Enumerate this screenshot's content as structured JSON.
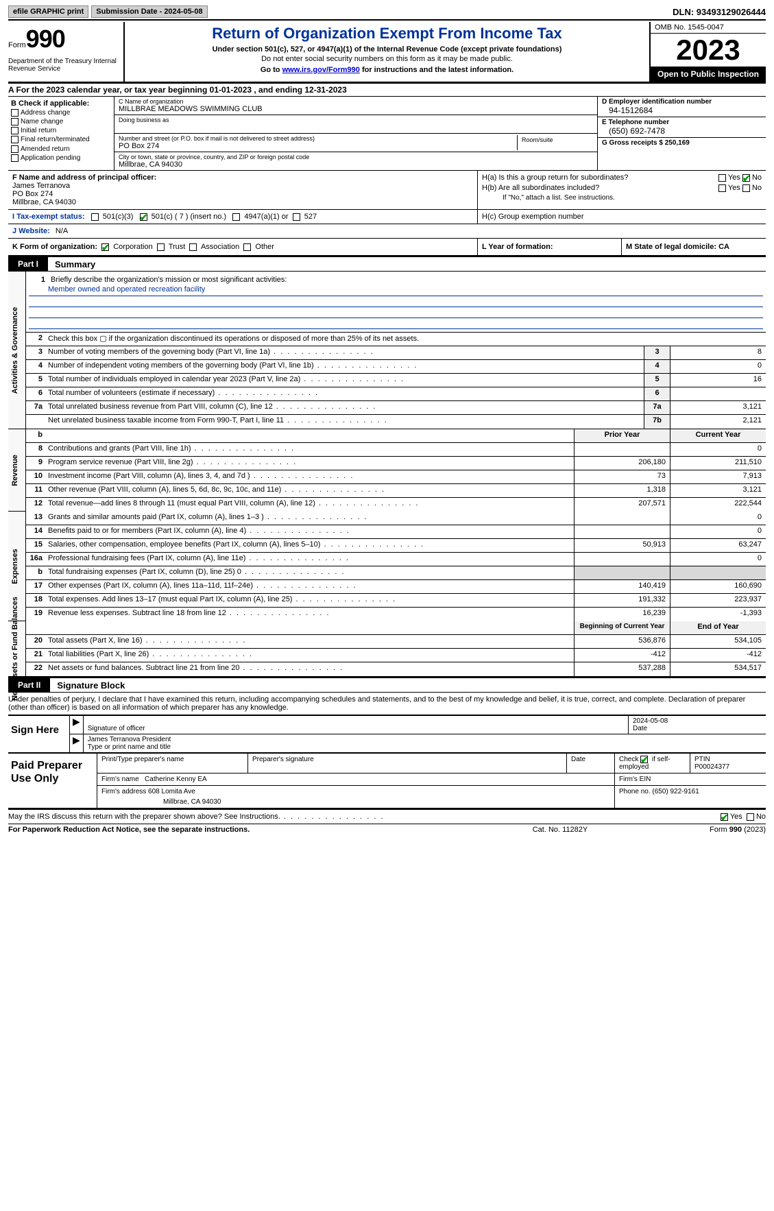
{
  "topbar": {
    "efile": "efile GRAPHIC print",
    "submission_label": "Submission Date - 2024-05-08",
    "dln_label": "DLN: 93493129026444"
  },
  "header": {
    "form_word": "Form",
    "form_number": "990",
    "dept": "Department of the Treasury Internal Revenue Service",
    "title": "Return of Organization Exempt From Income Tax",
    "sub1": "Under section 501(c), 527, or 4947(a)(1) of the Internal Revenue Code (except private foundations)",
    "sub2": "Do not enter social security numbers on this form as it may be made public.",
    "sub3_prefix": "Go to ",
    "sub3_link": "www.irs.gov/Form990",
    "sub3_suffix": " for instructions and the latest information.",
    "omb": "OMB No. 1545-0047",
    "year": "2023",
    "open": "Open to Public Inspection"
  },
  "line_a": "A  For the 2023 calendar year, or tax year beginning 01-01-2023    , and ending 12-31-2023",
  "col_b": {
    "header": "B Check if applicable:",
    "items": [
      "Address change",
      "Name change",
      "Initial return",
      "Final return/terminated",
      "Amended return",
      "Application pending"
    ]
  },
  "col_c": {
    "name_lab": "C Name of organization",
    "name_val": "MILLBRAE MEADOWS SWIMMING CLUB",
    "dba_lab": "Doing business as",
    "addr_lab": "Number and street (or P.O. box if mail is not delivered to street address)",
    "addr_val": "PO Box 274",
    "room_lab": "Room/suite",
    "city_lab": "City or town, state or province, country, and ZIP or foreign postal code",
    "city_val": "Millbrae, CA  94030"
  },
  "col_d": {
    "ein_lab": "D Employer identification number",
    "ein_val": "94-1512684",
    "phone_lab": "E Telephone number",
    "phone_val": "(650) 692-7478",
    "gross_lab": "G Gross receipts $ 250,169"
  },
  "row_f": {
    "lab": "F  Name and address of principal officer:",
    "name": "James Terranova",
    "addr1": "PO Box 274",
    "addr2": "Millbrae, CA  94030"
  },
  "row_h": {
    "ha_lab": "H(a)  Is this a group return for subordinates?",
    "hb_lab": "H(b)  Are all subordinates included?",
    "hb_note": "If \"No,\" attach a list. See instructions.",
    "hc_lab": "H(c)  Group exemption number"
  },
  "row_i": {
    "label": "I  Tax-exempt status:",
    "opt1": "501(c)(3)",
    "opt2": "501(c) ( 7 ) (insert no.)",
    "opt3": "4947(a)(1) or",
    "opt4": "527"
  },
  "row_j": {
    "label": "J  Website:",
    "val": "N/A"
  },
  "row_k": {
    "k_lab": "K Form of organization:",
    "opts": [
      "Corporation",
      "Trust",
      "Association",
      "Other"
    ],
    "l_lab": "L Year of formation:",
    "m_lab": "M State of legal domicile: CA"
  },
  "part1": {
    "tab": "Part I",
    "title": "Summary"
  },
  "mission": {
    "num": "1",
    "lab": "Briefly describe the organization's mission or most significant activities:",
    "val": "Member owned and operated recreation facility"
  },
  "governance_rows": [
    {
      "n": "2",
      "d": "Check this box ▢  if the organization discontinued its operations or disposed of more than 25% of its net assets.",
      "box": "",
      "v": ""
    },
    {
      "n": "3",
      "d": "Number of voting members of the governing body (Part VI, line 1a)",
      "box": "3",
      "v": "8"
    },
    {
      "n": "4",
      "d": "Number of independent voting members of the governing body (Part VI, line 1b)",
      "box": "4",
      "v": "0"
    },
    {
      "n": "5",
      "d": "Total number of individuals employed in calendar year 2023 (Part V, line 2a)",
      "box": "5",
      "v": "16"
    },
    {
      "n": "6",
      "d": "Total number of volunteers (estimate if necessary)",
      "box": "6",
      "v": ""
    },
    {
      "n": "7a",
      "d": "Total unrelated business revenue from Part VIII, column (C), line 12",
      "box": "7a",
      "v": "3,121"
    },
    {
      "n": "",
      "d": "Net unrelated business taxable income from Form 990-T, Part I, line 11",
      "box": "7b",
      "v": "2,121"
    }
  ],
  "twocol_header": {
    "b": "b",
    "prior": "Prior Year",
    "current": "Current Year"
  },
  "revenue_rows": [
    {
      "n": "8",
      "d": "Contributions and grants (Part VIII, line 1h)",
      "p": "",
      "c": "0"
    },
    {
      "n": "9",
      "d": "Program service revenue (Part VIII, line 2g)",
      "p": "206,180",
      "c": "211,510"
    },
    {
      "n": "10",
      "d": "Investment income (Part VIII, column (A), lines 3, 4, and 7d )",
      "p": "73",
      "c": "7,913"
    },
    {
      "n": "11",
      "d": "Other revenue (Part VIII, column (A), lines 5, 6d, 8c, 9c, 10c, and 11e)",
      "p": "1,318",
      "c": "3,121"
    },
    {
      "n": "12",
      "d": "Total revenue—add lines 8 through 11 (must equal Part VIII, column (A), line 12)",
      "p": "207,571",
      "c": "222,544"
    }
  ],
  "expense_rows": [
    {
      "n": "13",
      "d": "Grants and similar amounts paid (Part IX, column (A), lines 1–3 )",
      "p": "",
      "c": "0"
    },
    {
      "n": "14",
      "d": "Benefits paid to or for members (Part IX, column (A), line 4)",
      "p": "",
      "c": "0"
    },
    {
      "n": "15",
      "d": "Salaries, other compensation, employee benefits (Part IX, column (A), lines 5–10)",
      "p": "50,913",
      "c": "63,247"
    },
    {
      "n": "16a",
      "d": "Professional fundraising fees (Part IX, column (A), line 11e)",
      "p": "",
      "c": "0"
    },
    {
      "n": "b",
      "d": "Total fundraising expenses (Part IX, column (D), line 25) 0",
      "p": "SHADED",
      "c": "SHADED"
    },
    {
      "n": "17",
      "d": "Other expenses (Part IX, column (A), lines 11a–11d, 11f–24e)",
      "p": "140,419",
      "c": "160,690"
    },
    {
      "n": "18",
      "d": "Total expenses. Add lines 13–17 (must equal Part IX, column (A), line 25)",
      "p": "191,332",
      "c": "223,937"
    },
    {
      "n": "19",
      "d": "Revenue less expenses. Subtract line 18 from line 12",
      "p": "16,239",
      "c": "-1,393"
    }
  ],
  "netassets_header": {
    "prior": "Beginning of Current Year",
    "current": "End of Year"
  },
  "netassets_rows": [
    {
      "n": "20",
      "d": "Total assets (Part X, line 16)",
      "p": "536,876",
      "c": "534,105"
    },
    {
      "n": "21",
      "d": "Total liabilities (Part X, line 26)",
      "p": "-412",
      "c": "-412"
    },
    {
      "n": "22",
      "d": "Net assets or fund balances. Subtract line 21 from line 20",
      "p": "537,288",
      "c": "534,517"
    }
  ],
  "vlabels": {
    "gov": "Activities & Governance",
    "rev": "Revenue",
    "exp": "Expenses",
    "net": "Net Assets or Fund Balances"
  },
  "part2": {
    "tab": "Part II",
    "title": "Signature Block"
  },
  "declare": "Under penalties of perjury, I declare that I have examined this return, including accompanying schedules and statements, and to the best of my knowledge and belief, it is true, correct, and complete. Declaration of preparer (other than officer) is based on all information of which preparer has any knowledge.",
  "sign": {
    "label": "Sign Here",
    "sig_lab": "Signature of officer",
    "date_lab": "Date",
    "date_val": "2024-05-08",
    "name_lab": "Type or print name and title",
    "name_val": "James Terranova  President"
  },
  "prep": {
    "label": "Paid Preparer Use Only",
    "pname_lab": "Print/Type preparer's name",
    "psig_lab": "Preparer's signature",
    "pdate_lab": "Date",
    "pcheck_lab": "Check ▢ if self-employed",
    "ptin_lab": "PTIN",
    "ptin_val": "P00024377",
    "firm_name_lab": "Firm's name",
    "firm_name_val": "Catherine Kenny EA",
    "firm_ein_lab": "Firm's EIN",
    "firm_addr_lab": "Firm's address",
    "firm_addr_val": "608 Lomita Ave",
    "firm_city": "Millbrae, CA  94030",
    "phone_lab": "Phone no. (650) 922-9161"
  },
  "discuss": "May the IRS discuss this return with the preparer shown above? See Instructions.",
  "footer": {
    "left": "For Paperwork Reduction Act Notice, see the separate instructions.",
    "mid": "Cat. No. 11282Y",
    "right": "Form 990 (2023)"
  },
  "yesno": {
    "yes": "Yes",
    "no": "No"
  }
}
